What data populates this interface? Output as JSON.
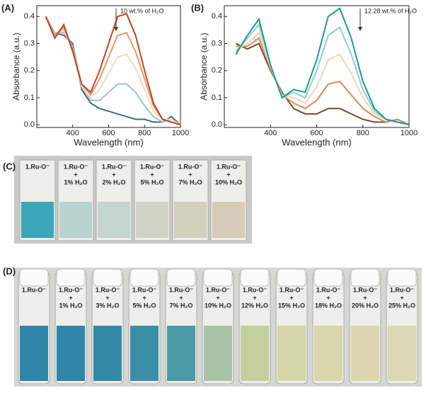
{
  "chart_data": [
    {
      "type": "line",
      "panel_label": "(A)",
      "xlabel": "Wavelength (nm)",
      "ylabel": "Absorbance (a.u.)",
      "annotation": "10 wt.% of H₂O",
      "x": [
        250,
        300,
        350,
        400,
        450,
        500,
        550,
        600,
        650,
        700,
        750,
        800,
        850,
        900,
        950,
        1000
      ],
      "xlim": [
        200,
        1000
      ],
      "xticks": [
        400,
        600,
        800,
        1000
      ],
      "ylim": [
        -0.01,
        0.44
      ],
      "yticks": [
        {
          "value": 0,
          "label": "0.0"
        },
        0.1,
        0.2,
        0.3,
        0.4
      ],
      "series": [
        {
          "color": "#3d6a86",
          "values": [
            0.4,
            0.34,
            0.33,
            0.3,
            0.13,
            0.08,
            0.06,
            0.05,
            0.04,
            0.03,
            0.02,
            0.02,
            0.01,
            0.01,
            0.03,
            0.0
          ]
        },
        {
          "color": "#9ec4d6",
          "values": [
            0.4,
            0.34,
            0.34,
            0.29,
            0.14,
            0.09,
            0.09,
            0.12,
            0.15,
            0.15,
            0.12,
            0.07,
            0.03,
            0.01,
            0.02,
            0.0
          ]
        },
        {
          "color": "#f3dcc4",
          "values": [
            0.4,
            0.33,
            0.35,
            0.28,
            0.14,
            0.1,
            0.13,
            0.19,
            0.25,
            0.26,
            0.21,
            0.13,
            0.05,
            0.02,
            0.02,
            0.0
          ]
        },
        {
          "color": "#e9956a",
          "values": [
            0.4,
            0.33,
            0.36,
            0.28,
            0.15,
            0.11,
            0.17,
            0.25,
            0.33,
            0.34,
            0.27,
            0.17,
            0.07,
            0.02,
            0.01,
            0.0
          ]
        },
        {
          "color": "#c2461e",
          "values": [
            0.4,
            0.32,
            0.37,
            0.27,
            0.15,
            0.12,
            0.2,
            0.3,
            0.4,
            0.41,
            0.33,
            0.2,
            0.08,
            0.02,
            0.01,
            0.0
          ]
        }
      ]
    },
    {
      "type": "line",
      "panel_label": "(B)",
      "xlabel": "Wavelength (nm)",
      "ylabel": "Absorbance (a.u.)",
      "annotation": "12.28 wt.% of H₂O",
      "x": [
        250,
        300,
        350,
        400,
        450,
        500,
        550,
        600,
        650,
        700,
        750,
        800,
        850,
        900,
        950,
        1000
      ],
      "xlim": [
        200,
        1000
      ],
      "xticks": [
        400,
        600,
        800,
        1000
      ],
      "ylim": [
        -0.01,
        0.44
      ],
      "yticks": [
        {
          "value": 0,
          "label": "0.0"
        },
        0.1,
        0.2,
        0.3,
        0.4
      ],
      "series": [
        {
          "color": "#7a4a26",
          "values": [
            0.3,
            0.28,
            0.3,
            0.2,
            0.12,
            0.06,
            0.04,
            0.04,
            0.06,
            0.06,
            0.04,
            0.02,
            0.01,
            0.01,
            0.02,
            0.0
          ]
        },
        {
          "color": "#d98a55",
          "values": [
            0.29,
            0.29,
            0.32,
            0.21,
            0.11,
            0.08,
            0.06,
            0.09,
            0.15,
            0.16,
            0.11,
            0.06,
            0.03,
            0.01,
            0.02,
            0.0
          ]
        },
        {
          "color": "#f2d5bd",
          "values": [
            0.28,
            0.3,
            0.34,
            0.21,
            0.11,
            0.1,
            0.08,
            0.14,
            0.24,
            0.26,
            0.19,
            0.1,
            0.04,
            0.02,
            0.01,
            0.0
          ]
        },
        {
          "color": "#8fd0c8",
          "values": [
            0.27,
            0.32,
            0.37,
            0.22,
            0.1,
            0.12,
            0.1,
            0.2,
            0.33,
            0.36,
            0.26,
            0.13,
            0.05,
            0.02,
            0.01,
            0.0
          ]
        },
        {
          "color": "#1a9c96",
          "values": [
            0.26,
            0.33,
            0.39,
            0.22,
            0.1,
            0.13,
            0.12,
            0.24,
            0.4,
            0.43,
            0.32,
            0.16,
            0.06,
            0.02,
            0.01,
            0.0
          ]
        }
      ]
    }
  ],
  "photos": [
    {
      "label": "(C)",
      "vials": [
        [
          "1.Ru-O⁻"
        ],
        [
          "1.Ru-O⁻",
          "+",
          "1% H₂O"
        ],
        [
          "1.Ru-O⁻",
          "+",
          "2% H₂O"
        ],
        [
          "1.Ru-O⁻",
          "+",
          "5% H₂O"
        ],
        [
          "1.Ru-O⁻",
          "+",
          "7% H₂O"
        ],
        [
          "1.Ru-O⁻",
          "+",
          "10% H₂O"
        ]
      ]
    },
    {
      "label": "(D)",
      "vials": [
        [
          "1.Ru-O⁻"
        ],
        [
          "1.Ru-O⁻",
          "+",
          "1% H₂O"
        ],
        [
          "1.Ru-O⁻",
          "+",
          "3% H₂O"
        ],
        [
          "1.Ru-O⁻",
          "+",
          "5% H₂O"
        ],
        [
          "1.Ru-O⁻",
          "+",
          "7% H₂O"
        ],
        [
          "1.Ru-O⁻",
          "+",
          "10% H₂O"
        ],
        [
          "1.Ru-O⁻",
          "+",
          "12% H₂O"
        ],
        [
          "1.Ru-O⁻",
          "+",
          "15% H₂O"
        ],
        [
          "1.Ru-O⁻",
          "+",
          "18% H₂O"
        ],
        [
          "1.Ru-O⁻",
          "+",
          "20% H₂O"
        ],
        [
          "1.Ru-O⁻",
          "+",
          "25% H₂O"
        ]
      ]
    }
  ]
}
